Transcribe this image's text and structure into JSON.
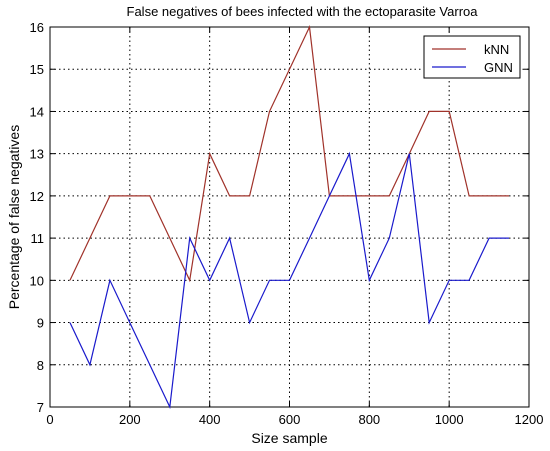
{
  "chart_data": {
    "type": "line",
    "title": "False negatives of bees infected with the ectoparasite Varroa",
    "xlabel": "Size sample",
    "ylabel": "Percentage of false negatives",
    "xlim": [
      0,
      1200
    ],
    "ylim": [
      7,
      16
    ],
    "xticks": [
      0,
      200,
      400,
      600,
      800,
      1000,
      1200
    ],
    "yticks": [
      7,
      8,
      9,
      10,
      11,
      12,
      13,
      14,
      15,
      16
    ],
    "grid": true,
    "legend_position": "top-right",
    "series": [
      {
        "name": "kNN",
        "color": "#a0322a",
        "x": [
          50,
          100,
          150,
          200,
          250,
          300,
          350,
          400,
          450,
          500,
          550,
          600,
          650,
          700,
          750,
          800,
          850,
          900,
          950,
          1000,
          1050,
          1100,
          1150
        ],
        "y": [
          10,
          11,
          12,
          12,
          12,
          11,
          10,
          13,
          12,
          12,
          14,
          15,
          16,
          12,
          12,
          12,
          12,
          13,
          14,
          14,
          12,
          12,
          12
        ]
      },
      {
        "name": "GNN",
        "color": "#1a1acc",
        "x": [
          50,
          100,
          150,
          200,
          250,
          300,
          350,
          400,
          450,
          500,
          550,
          600,
          650,
          700,
          750,
          800,
          850,
          900,
          950,
          1000,
          1050,
          1100,
          1150
        ],
        "y": [
          9,
          8,
          10,
          9,
          8,
          7,
          11,
          10,
          11,
          9,
          10,
          10,
          11,
          12,
          13,
          10,
          11,
          13,
          9,
          10,
          10,
          11,
          11
        ]
      }
    ]
  }
}
